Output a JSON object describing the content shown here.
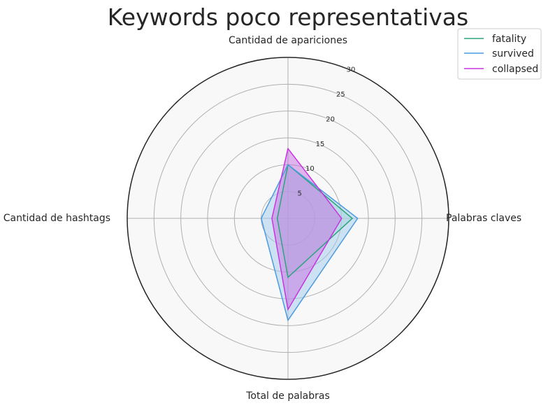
{
  "chart_data": {
    "type": "radar",
    "title": "Keywords poco representativas",
    "axes": [
      "Cantidad de apariciones",
      "Palabras claves",
      "Total de palabras",
      "Cantidad de hashtags"
    ],
    "rlim": [
      0,
      30
    ],
    "rticks": [
      5,
      10,
      15,
      20,
      25,
      30
    ],
    "grid": true,
    "legend_position": "top-right",
    "series": [
      {
        "name": "fatality",
        "values": [
          10,
          12,
          11,
          2
        ],
        "color": "#2ca37e",
        "fill_color": "#a9d9c7"
      },
      {
        "name": "survived",
        "values": [
          10,
          13,
          19,
          5
        ],
        "color": "#4c9be0",
        "fill_color": "#9fcbee"
      },
      {
        "name": "collapsed",
        "values": [
          13,
          10,
          17,
          3
        ],
        "color": "#c833e0",
        "fill_color": "#c56fe0"
      }
    ]
  }
}
